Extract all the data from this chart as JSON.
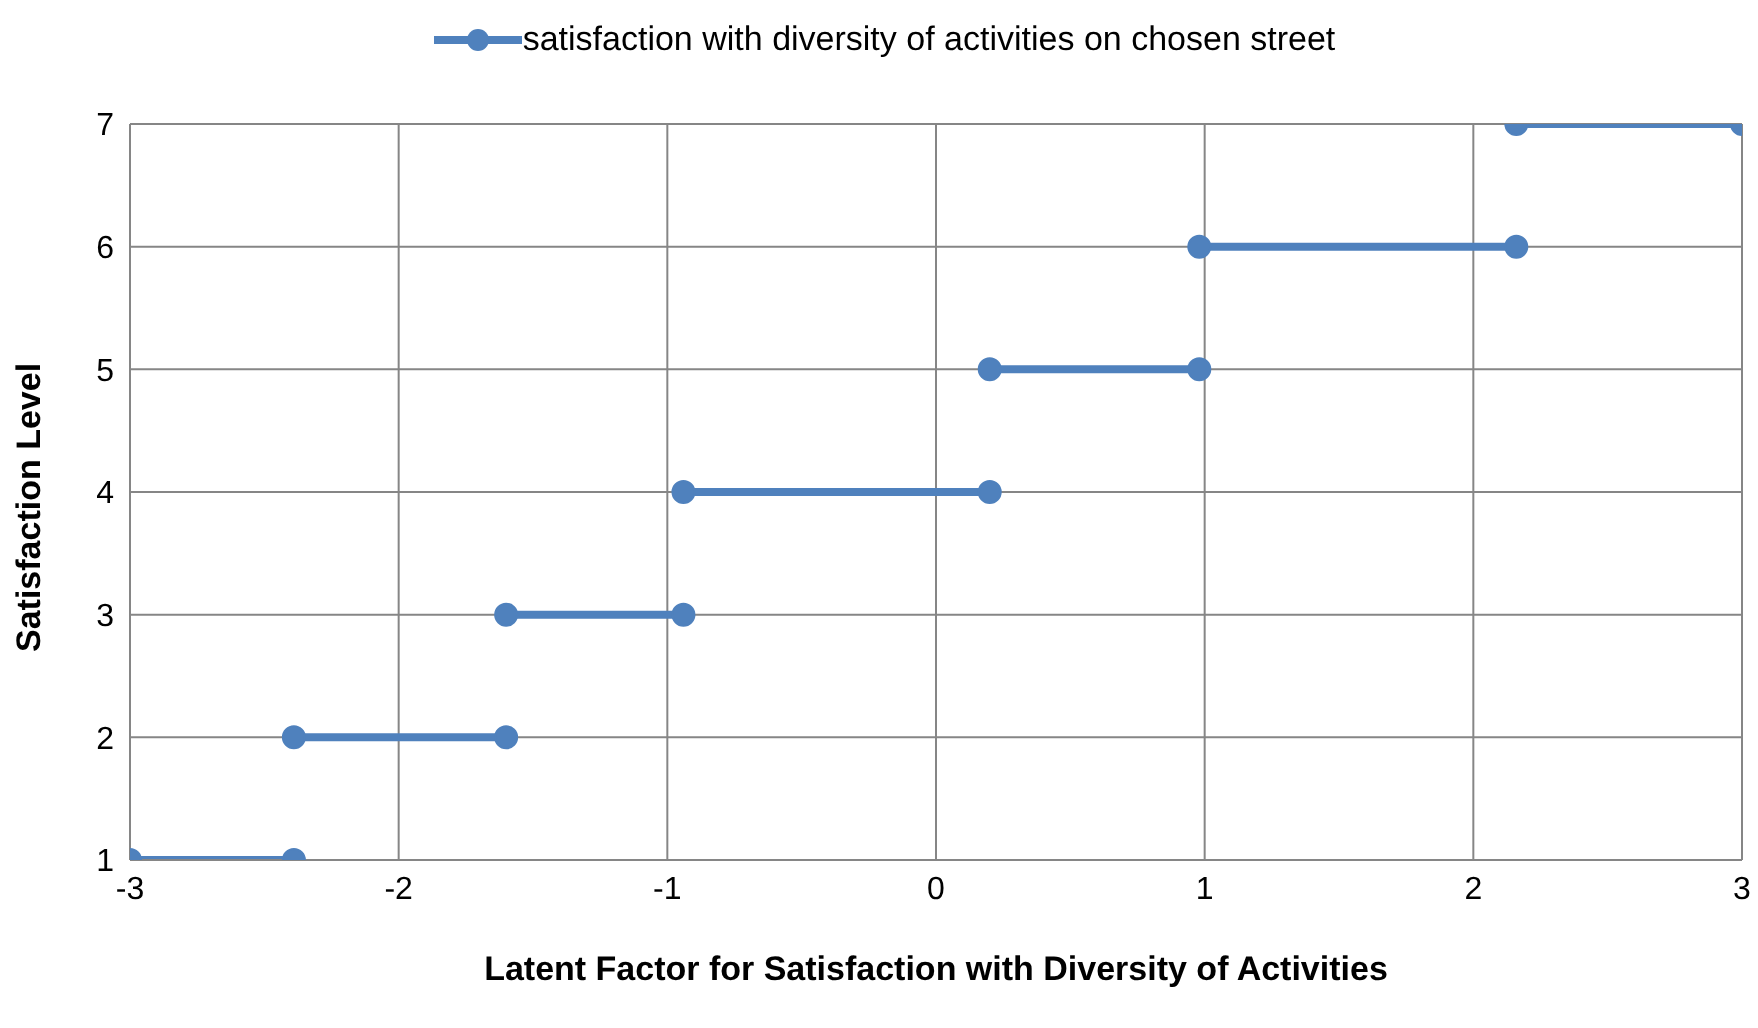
{
  "chart_data": {
    "type": "line",
    "xlabel": "Latent Factor for Satisfaction with Diversity of Activities",
    "ylabel": "Satisfaction Level",
    "x": [
      -3,
      -2.39,
      -2.39,
      -1.6,
      -1.6,
      -0.94,
      -0.94,
      0.2,
      0.2,
      0.98,
      0.98,
      2.16,
      2.16,
      3
    ],
    "series": [
      {
        "name": "satisfaction with diversity of activities on chosen street",
        "color": "#4f81bd",
        "values": [
          1,
          1,
          2,
          2,
          3,
          3,
          4,
          4,
          5,
          5,
          6,
          6,
          7,
          7
        ]
      }
    ],
    "xlim": [
      -3,
      3
    ],
    "xticks": [
      -3,
      -2,
      -1,
      0,
      1,
      2,
      3
    ],
    "ylim": [
      1,
      7
    ],
    "yticks": [
      1,
      2,
      3,
      4,
      5,
      6,
      7
    ],
    "grid": true,
    "legend": "top",
    "marker": "circle",
    "line_style": "solid"
  }
}
